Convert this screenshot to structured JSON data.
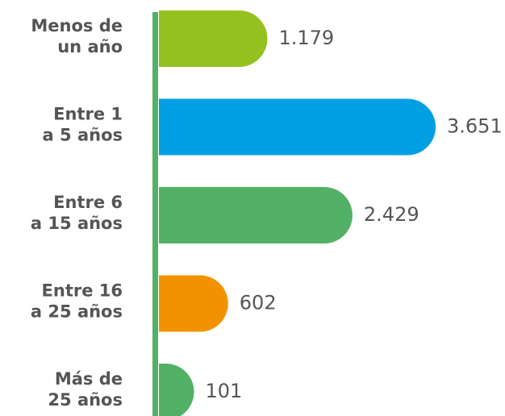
{
  "chart_data": {
    "type": "bar",
    "orientation": "horizontal",
    "categories": [
      "Menos de\nun año",
      "Entre 1\na 5 años",
      "Entre 6\na 15 años",
      "Entre 16\na 25 años",
      "Más de\n25 años"
    ],
    "values": [
      1179,
      3651,
      2429,
      602,
      101
    ],
    "value_labels": [
      "1.179",
      "3.651",
      "2.429",
      "602",
      "101"
    ],
    "colors": [
      "#95c11f",
      "#009fe3",
      "#52b166",
      "#f39200",
      "#52b166"
    ],
    "axis_color": "#52b166"
  }
}
